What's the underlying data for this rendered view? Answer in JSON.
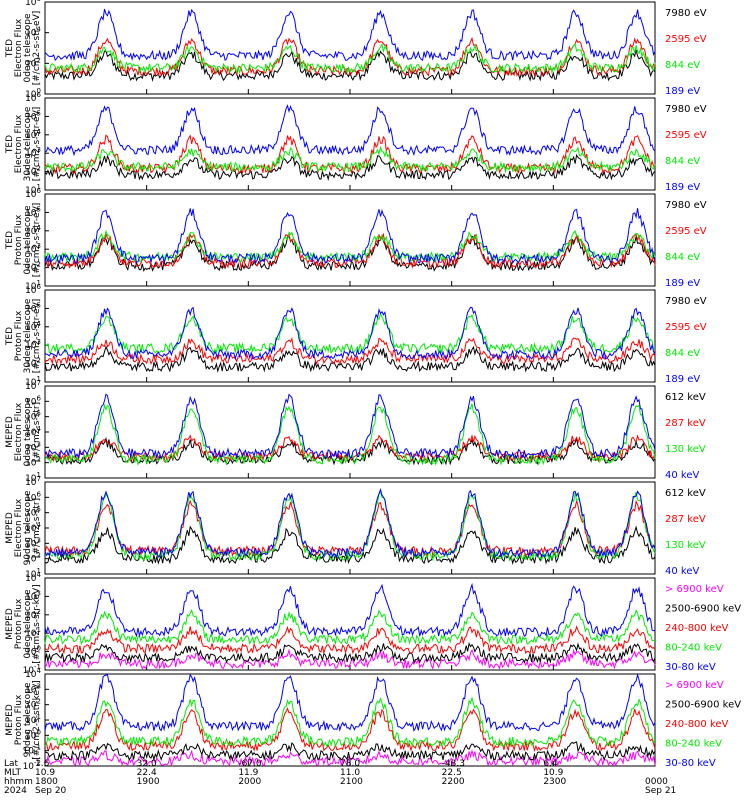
{
  "colors": {
    "black": "#000000",
    "red": "#ff0000",
    "green": "#00ee00",
    "blue": "#0000ff",
    "magenta": "#ff00ff"
  },
  "chart_data": [
    {
      "type": "line",
      "panel": "TED electron flux 0deg",
      "title_lines": [
        "TED",
        "Electron Flux",
        "0deg telescope",
        "[#/cm2-s-str-eV]"
      ],
      "ylog": true,
      "ylim_exp": [
        0,
        6
      ],
      "ytick_labels": [
        "10^0",
        "10^2",
        "10^4",
        "10^6"
      ],
      "series": [
        {
          "name": "7980 eV",
          "color": "black",
          "base": 1.2,
          "peak": 2.6
        },
        {
          "name": "2595 eV",
          "color": "red",
          "base": 1.5,
          "peak": 3.5
        },
        {
          "name": "844 eV",
          "color": "green",
          "base": 1.7,
          "peak": 3.0
        },
        {
          "name": "189 eV",
          "color": "blue",
          "base": 2.5,
          "peak": 5.3
        }
      ]
    },
    {
      "type": "line",
      "panel": "TED electron flux 30deg",
      "title_lines": [
        "TED",
        "Electron Flux",
        "30deg telescope",
        "[#/cm2-s-str-eV]"
      ],
      "ylog": true,
      "ylim_exp": [
        0,
        6
      ],
      "ytick_labels": [
        "10^1",
        "10^2",
        "10^3",
        "10^4",
        "10^5",
        "10^6"
      ],
      "series": [
        {
          "name": "7980 eV",
          "color": "black",
          "base": 1.0,
          "peak": 2.0
        },
        {
          "name": "2595 eV",
          "color": "red",
          "base": 1.4,
          "peak": 3.3
        },
        {
          "name": "844 eV",
          "color": "green",
          "base": 1.5,
          "peak": 2.5
        },
        {
          "name": "189 eV",
          "color": "blue",
          "base": 2.6,
          "peak": 5.3
        }
      ]
    },
    {
      "type": "line",
      "panel": "TED proton flux 0deg",
      "title_lines": [
        "TED",
        "Proton Flux",
        "0deg telescope",
        "[#/cm2-s-str-eV]"
      ],
      "ylog": true,
      "ylim_exp": [
        0,
        6
      ],
      "ytick_labels": [
        "10^1",
        "10^2",
        "10^3",
        "10^4",
        "10^5",
        "10^6"
      ],
      "series": [
        {
          "name": "7980 eV",
          "color": "black",
          "base": 1.3,
          "peak": 3.0
        },
        {
          "name": "2595 eV",
          "color": "red",
          "base": 1.5,
          "peak": 3.2
        },
        {
          "name": "844 eV",
          "color": "green",
          "base": 1.9,
          "peak": 3.3
        },
        {
          "name": "189 eV",
          "color": "blue",
          "base": 1.8,
          "peak": 4.8
        }
      ]
    },
    {
      "type": "line",
      "panel": "TED proton flux 30deg",
      "title_lines": [
        "TED",
        "Proton Flux",
        "30deg telescope",
        "[#/cm2-s-str-eV]"
      ],
      "ylog": true,
      "ylim_exp": [
        0,
        6
      ],
      "ytick_labels": [
        "10^1",
        "10^2",
        "10^3",
        "10^4",
        "10^5",
        "10^6"
      ],
      "series": [
        {
          "name": "7980 eV",
          "color": "black",
          "base": 1.0,
          "peak": 2.0
        },
        {
          "name": "2595 eV",
          "color": "red",
          "base": 1.5,
          "peak": 2.6
        },
        {
          "name": "844 eV",
          "color": "green",
          "base": 2.2,
          "peak": 4.2
        },
        {
          "name": "189 eV",
          "color": "blue",
          "base": 1.8,
          "peak": 4.7
        }
      ]
    },
    {
      "type": "line",
      "panel": "MEPED electron flux 0deg",
      "title_lines": [
        "MEPED",
        "Electron Flux",
        "0deg telescope",
        "[#/cm2-s-str]"
      ],
      "ylog": true,
      "ylim_exp": [
        1,
        7
      ],
      "ytick_labels": [
        "10^1",
        "10^2",
        "10^3",
        "10^4",
        "10^5",
        "10^6",
        "10^7"
      ],
      "series": [
        {
          "name": "612 keV",
          "color": "black",
          "base": 2.2,
          "peak": 3.3
        },
        {
          "name": "287 keV",
          "color": "red",
          "base": 2.4,
          "peak": 3.6
        },
        {
          "name": "130 keV",
          "color": "green",
          "base": 2.2,
          "peak": 5.6
        },
        {
          "name": "40 keV",
          "color": "blue",
          "base": 2.6,
          "peak": 6.2
        }
      ]
    },
    {
      "type": "line",
      "panel": "MEPED electron flux 90deg",
      "title_lines": [
        "MEPED",
        "Electron Flux",
        "90deg telescope",
        "[#/cm2-s-str]"
      ],
      "ylog": true,
      "ylim_exp": [
        1,
        7
      ],
      "ytick_labels": [
        "10^1",
        "10^2",
        "10^3",
        "10^4",
        "10^5",
        "10^6",
        "10^7"
      ],
      "series": [
        {
          "name": "612 keV",
          "color": "black",
          "base": 2.0,
          "peak": 3.8
        },
        {
          "name": "287 keV",
          "color": "red",
          "base": 2.5,
          "peak": 5.5
        },
        {
          "name": "130 keV",
          "color": "green",
          "base": 2.2,
          "peak": 6.1
        },
        {
          "name": "40 keV",
          "color": "blue",
          "base": 2.4,
          "peak": 6.3
        }
      ]
    },
    {
      "type": "line",
      "panel": "MEPED proton flux 0deg",
      "title_lines": [
        "MEPED",
        "Proton Flux",
        "0deg telescope",
        "[#/cm2-s-str-keV]"
      ],
      "ylog": true,
      "ylim_exp": [
        -2,
        4
      ],
      "ytick_labels": [
        "10^-1",
        "10^0",
        "10^1",
        "10^2",
        "10^3",
        "10^4"
      ],
      "series": [
        {
          "name": "> 6900 keV",
          "color": "magenta",
          "base": -1.6,
          "peak": -1.0
        },
        {
          "name": "2500-6900 keV",
          "color": "black",
          "base": -1.2,
          "peak": -0.5
        },
        {
          "name": "240-800 keV",
          "color": "red",
          "base": -0.6,
          "peak": 0.6
        },
        {
          "name": "80-240 keV",
          "color": "green",
          "base": 0.0,
          "peak": 1.6
        },
        {
          "name": "30-80 keV",
          "color": "blue",
          "base": 0.5,
          "peak": 3.3
        }
      ]
    },
    {
      "type": "line",
      "panel": "MEPED proton flux 90deg",
      "title_lines": [
        "MEPED",
        "Proton Flux",
        "90deg telescope",
        "[#/cm2-s-str-keV]"
      ],
      "ylog": true,
      "ylim_exp": [
        -2,
        4
      ],
      "ytick_labels": [
        "10^-2",
        "10^-1",
        "10^0",
        "10^1",
        "10^2",
        "10^3",
        "10^4"
      ],
      "series": [
        {
          "name": "> 6900 keV",
          "color": "magenta",
          "base": -1.7,
          "peak": -1.3
        },
        {
          "name": "2500-6900 keV",
          "color": "black",
          "base": -1.3,
          "peak": -0.7
        },
        {
          "name": "240-800 keV",
          "color": "red",
          "base": -0.7,
          "peak": 1.5
        },
        {
          "name": "80-240 keV",
          "color": "green",
          "base": -0.4,
          "peak": 2.2
        },
        {
          "name": "30-80 keV",
          "color": "blue",
          "base": 0.6,
          "peak": 3.8
        }
      ]
    }
  ],
  "x_axis": {
    "row_labels": [
      "Lat",
      "MLT",
      "hhmm",
      "2024"
    ],
    "ticks": [
      {
        "lat": "1.6",
        "mlt": "10.9",
        "hhmm": "1800",
        "date": "Sep 20"
      },
      {
        "lat": "32.0",
        "mlt": "22.4",
        "hhmm": "1900",
        "date": ""
      },
      {
        "lat": "-67.0",
        "mlt": "11.9",
        "hhmm": "2000",
        "date": ""
      },
      {
        "lat": "78.0",
        "mlt": "11.0",
        "hhmm": "2100",
        "date": ""
      },
      {
        "lat": "-43.3",
        "mlt": "22.5",
        "hhmm": "2200",
        "date": ""
      },
      {
        "lat": "6.4",
        "mlt": "10.9",
        "hhmm": "2300",
        "date": ""
      },
      {
        "lat": "",
        "mlt": "",
        "hhmm": "0000",
        "date": "Sep 21"
      }
    ]
  }
}
